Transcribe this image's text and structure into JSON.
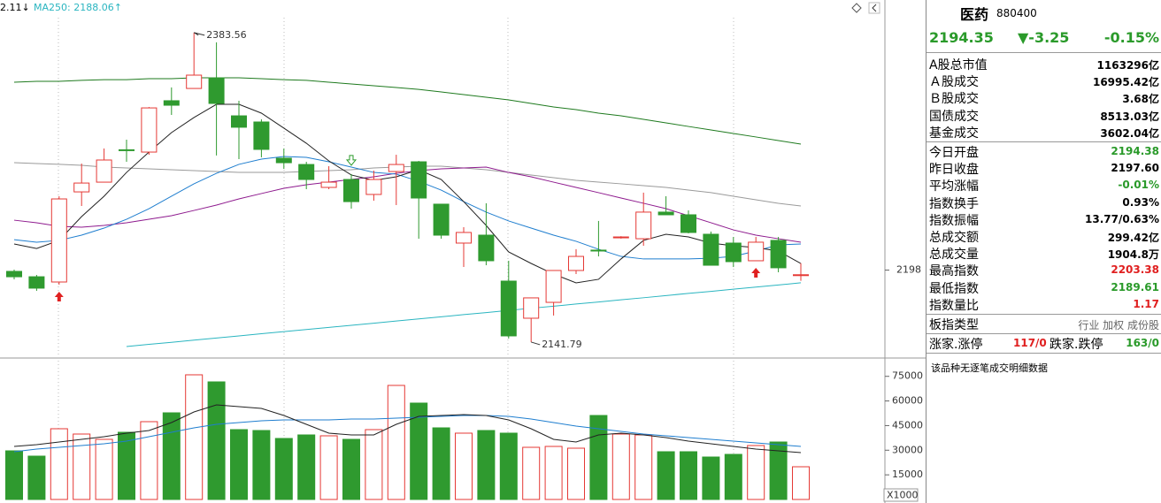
{
  "chart_data": [
    {
      "type": "candlestick",
      "legend": [
        "2.11↓",
        "MA250: 2188.06↑"
      ],
      "ylim": [
        2130,
        2409
      ],
      "yticks": [
        2198
      ],
      "hollow_color": "#e53935",
      "colors": [
        "#2f9a2f",
        "#2f9a2f",
        "#e53935",
        "#e53935",
        "#e53935",
        "#2f9a2f",
        "#e53935",
        "#2f9a2f",
        "#e53935",
        "#2f9a2f",
        "#2f9a2f",
        "#2f9a2f",
        "#2f9a2f",
        "#2f9a2f",
        "#e53935",
        "#2f9a2f",
        "#e53935",
        "#e53935",
        "#2f9a2f",
        "#2f9a2f",
        "#e53935",
        "#2f9a2f",
        "#2f9a2f",
        "#e53935",
        "#e53935",
        "#e53935",
        "#2f9a2f",
        "#e53935",
        "#e53935",
        "#2f9a2f",
        "#2f9a2f",
        "#2f9a2f",
        "#2f9a2f",
        "#e53935",
        "#2f9a2f",
        "#e53935"
      ],
      "open": [
        2196.99,
        2192.8,
        2188.7,
        2259.1,
        2266.7,
        2292,
        2290.2,
        2330.3,
        2339.9,
        2348.2,
        2318.5,
        2313.7,
        2285.4,
        2280.5,
        2262.6,
        2268.8,
        2257.1,
        2275.0,
        2282.6,
        2249.5,
        2219.1,
        2225.3,
        2189.4,
        2160.4,
        2172.8,
        2197.7,
        2213.6,
        2223.2,
        2222.5,
        2243.3,
        2241.2,
        2226.0,
        2219.1,
        2205.3,
        2221.2,
        2194.38
      ],
      "high": [
        2198.4,
        2194.2,
        2255.7,
        2281.2,
        2293.0,
        2299.9,
        2325.4,
        2340.7,
        2383.56,
        2375.9,
        2330.3,
        2315.8,
        2293.0,
        2282.6,
        2279.2,
        2273.0,
        2275.7,
        2288.1,
        2283.3,
        2249.5,
        2231.5,
        2250.2,
        2205.3,
        2176.3,
        2197.7,
        2214.3,
        2236.4,
        2224.5,
        2258.5,
        2255.7,
        2244.6,
        2228.1,
        2223.9,
        2223.9,
        2223.9,
        2203.38
      ],
      "low": [
        2190.8,
        2181.8,
        2186.6,
        2248.1,
        2266.7,
        2282.6,
        2288.1,
        2319.2,
        2339.9,
        2287.5,
        2284.7,
        2286.1,
        2277.1,
        2261.2,
        2261.2,
        2246.0,
        2252.2,
        2248.8,
        2222.5,
        2222.5,
        2200.4,
        2201.8,
        2144.5,
        2141.79,
        2162.5,
        2194.9,
        2208.7,
        2222.6,
        2217.0,
        2241.2,
        2226.7,
        2201.8,
        2200.4,
        2205.3,
        2196.3,
        2189.61
      ],
      "close": [
        2192.8,
        2183.9,
        2253.6,
        2266.0,
        2284.0,
        2291.5,
        2324.7,
        2326.8,
        2350.3,
        2328.2,
        2309.6,
        2292.3,
        2281.9,
        2268.8,
        2266.7,
        2251.5,
        2268.8,
        2280.5,
        2254.3,
        2225.3,
        2227.4,
        2205.3,
        2146.6,
        2176.3,
        2197.7,
        2208.7,
        2212.9,
        2223.9,
        2243.3,
        2241.2,
        2227.4,
        2201.8,
        2204.6,
        2219.8,
        2199.8,
        2194.35
      ],
      "series": [
        {
          "color": "#1e7a1e",
          "values": [
            2344.8,
            2345.5,
            2345.5,
            2346.2,
            2346.8,
            2346.8,
            2347.5,
            2347.5,
            2348.2,
            2348.2,
            2348.2,
            2347.5,
            2346.8,
            2346.2,
            2344.8,
            2343.4,
            2342.0,
            2340.6,
            2339.2,
            2337.2,
            2335.1,
            2333.0,
            2331.0,
            2328.2,
            2325.4,
            2323.4,
            2320.6,
            2318.5,
            2315.8,
            2313.0,
            2310.2,
            2307.5,
            2304.7,
            2302.0,
            2299.2,
            2296.4
          ]
        },
        {
          "color": "#9a9a9a",
          "values": [
            2281.9,
            2281.2,
            2280.6,
            2279.9,
            2278.5,
            2277.8,
            2277.1,
            2276.4,
            2275.7,
            2275.0,
            2274.3,
            2274.3,
            2274.3,
            2275.0,
            2275.7,
            2276.4,
            2277.8,
            2278.5,
            2279.2,
            2279.2,
            2277.8,
            2276.4,
            2274.3,
            2272.3,
            2270.2,
            2268.1,
            2266.7,
            2265.4,
            2264.0,
            2262.6,
            2260.5,
            2258.5,
            2255.7,
            2252.9,
            2250.2,
            2248.1
          ]
        },
        {
          "color": "#8e1a8e",
          "values": [
            2237.0,
            2235.0,
            2232.2,
            2231.5,
            2232.9,
            2235.0,
            2237.7,
            2240.5,
            2244.6,
            2248.8,
            2253.6,
            2257.8,
            2261.9,
            2264.7,
            2266.7,
            2268.8,
            2270.9,
            2273.6,
            2275.7,
            2277.1,
            2277.8,
            2278.5,
            2274.3,
            2270.9,
            2266.7,
            2262.6,
            2258.5,
            2254.3,
            2250.2,
            2246.0,
            2240.5,
            2235.0,
            2229.4,
            2225.3,
            2222.5,
            2219.8
          ]
        },
        {
          "color": "#1f7ecf",
          "values": [
            2221.8,
            2219.8,
            2221.2,
            2225.3,
            2230.8,
            2237.7,
            2246.0,
            2255.7,
            2265.4,
            2273.6,
            2280.6,
            2284.7,
            2286.8,
            2286.1,
            2282.6,
            2278.5,
            2274.3,
            2273.0,
            2267.4,
            2260.5,
            2251.5,
            2243.3,
            2236.4,
            2230.8,
            2225.3,
            2220.5,
            2214.3,
            2208.7,
            2206.7,
            2206.7,
            2206.7,
            2207.3,
            2208.7,
            2212.9,
            2217.7,
            2218.4
          ]
        },
        {
          "color": "#222222",
          "values": [
            2218.4,
            2214.9,
            2221.2,
            2239.8,
            2255.7,
            2274.3,
            2290.2,
            2305.4,
            2317.2,
            2327.5,
            2327.5,
            2320.6,
            2308.9,
            2297.1,
            2283.3,
            2272.3,
            2268.1,
            2270.9,
            2276.4,
            2268.8,
            2251.5,
            2232.9,
            2212.2,
            2203.2,
            2194.9,
            2188.0,
            2190.8,
            2206.7,
            2221.2,
            2226.0,
            2223.9,
            2219.1,
            2217.0,
            2215.6,
            2212.9,
            2203.2
          ]
        },
        {
          "color": "#2ab5c0",
          "values": [
            null,
            null,
            null,
            null,
            null,
            2138.3,
            2140.0,
            2141.6,
            2143.3,
            2144.9,
            2146.6,
            2148.3,
            2149.9,
            2151.6,
            2153.2,
            2154.9,
            2156.5,
            2158.2,
            2159.9,
            2161.5,
            2163.2,
            2164.8,
            2166.5,
            2168.2,
            2169.8,
            2171.5,
            2173.1,
            2174.8,
            2176.4,
            2178.1,
            2179.8,
            2181.4,
            2183.1,
            2184.7,
            2186.4,
            2188.06
          ]
        }
      ]
    },
    {
      "type": "bar",
      "unit_label": "X1000",
      "ylim": [
        0,
        84000
      ],
      "yticks": [
        15000,
        30000,
        45000,
        60000,
        75000
      ],
      "hollow_color": "#e53935",
      "colors": [
        "#2f9a2f",
        "#2f9a2f",
        "#e53935",
        "#e53935",
        "#e53935",
        "#2f9a2f",
        "#e53935",
        "#2f9a2f",
        "#e53935",
        "#2f9a2f",
        "#2f9a2f",
        "#2f9a2f",
        "#2f9a2f",
        "#2f9a2f",
        "#e53935",
        "#2f9a2f",
        "#e53935",
        "#e53935",
        "#2f9a2f",
        "#2f9a2f",
        "#e53935",
        "#2f9a2f",
        "#2f9a2f",
        "#e53935",
        "#e53935",
        "#e53935",
        "#2f9a2f",
        "#e53935",
        "#e53935",
        "#2f9a2f",
        "#2f9a2f",
        "#2f9a2f",
        "#2f9a2f",
        "#e53935",
        "#2f9a2f",
        "#e53935"
      ],
      "values": [
        29620,
        26390,
        43080,
        39850,
        36620,
        40930,
        47390,
        52770,
        75930,
        71620,
        42540,
        42000,
        37160,
        39310,
        38770,
        36620,
        42540,
        69470,
        58700,
        43620,
        40390,
        42000,
        40390,
        31770,
        32310,
        31230,
        51160,
        39850,
        39310,
        29080,
        29080,
        25850,
        27460,
        32850,
        35000,
        19920
      ],
      "series": [
        {
          "color": "#1f7ecf",
          "values": [
            29080,
            30690,
            31770,
            32850,
            33930,
            35540,
            38230,
            40930,
            43620,
            45770,
            46850,
            47930,
            48460,
            48460,
            48460,
            49000,
            49000,
            49540,
            50080,
            50620,
            51160,
            51160,
            50620,
            49000,
            46850,
            44700,
            43080,
            41460,
            39850,
            38770,
            37700,
            36620,
            35540,
            34460,
            33390,
            32310
          ]
        },
        {
          "color": "#222222",
          "values": [
            32310,
            33390,
            35000,
            36620,
            38230,
            40390,
            42000,
            46850,
            53310,
            57620,
            56540,
            55470,
            51160,
            45770,
            40390,
            39310,
            39310,
            45770,
            50620,
            51160,
            51700,
            51160,
            48460,
            43080,
            36620,
            35000,
            39310,
            40390,
            39310,
            37700,
            35540,
            33930,
            32310,
            30690,
            29620,
            28540
          ]
        }
      ]
    }
  ],
  "quote_panel": {
    "name": "医药",
    "code": "880400",
    "price": "2194.35",
    "change": "▼-3.25",
    "change_pct": "-0.15%",
    "sections": [
      [
        {
          "label": "A股总市值",
          "value": "1163296亿",
          "color": "#000"
        },
        {
          "label": "Ａ股成交",
          "value": "16995.42亿",
          "color": "#000"
        },
        {
          "label": "Ｂ股成交",
          "value": "3.68亿",
          "color": "#000"
        },
        {
          "label": "国债成交",
          "value": "8513.03亿",
          "color": "#000"
        },
        {
          "label": "基金成交",
          "value": "3602.04亿",
          "color": "#000"
        }
      ],
      [
        {
          "label": "今日开盘",
          "value": "2194.38",
          "color": "#2a9a2a"
        },
        {
          "label": "昨日收盘",
          "value": "2197.60",
          "color": "#000"
        },
        {
          "label": "平均涨幅",
          "value": "-0.01%",
          "color": "#2a9a2a"
        },
        {
          "label": "指数换手",
          "value": "0.93%",
          "color": "#000"
        },
        {
          "label": "指数振幅",
          "value": "13.77/0.63%",
          "color": "#000"
        },
        {
          "label": "总成交额",
          "value": "299.42亿",
          "color": "#000"
        },
        {
          "label": "总成交量",
          "value": "1904.8万",
          "color": "#000"
        },
        {
          "label": "最高指数",
          "value": "2203.38",
          "color": "#e02020"
        },
        {
          "label": "最低指数",
          "value": "2189.61",
          "color": "#2a9a2a"
        },
        {
          "label": "指数量比",
          "value": "1.17",
          "color": "#e02020"
        }
      ],
      [
        {
          "label": "板指类型",
          "value": "行业 加权 成份股",
          "color": "#666"
        }
      ]
    ],
    "breadth": {
      "up_label": "涨家.涨停",
      "up_value": "117/0",
      "down_label": "跌家.跌停",
      "down_value": "163/0"
    },
    "note": "该品种无逐笔成交明细数据"
  }
}
